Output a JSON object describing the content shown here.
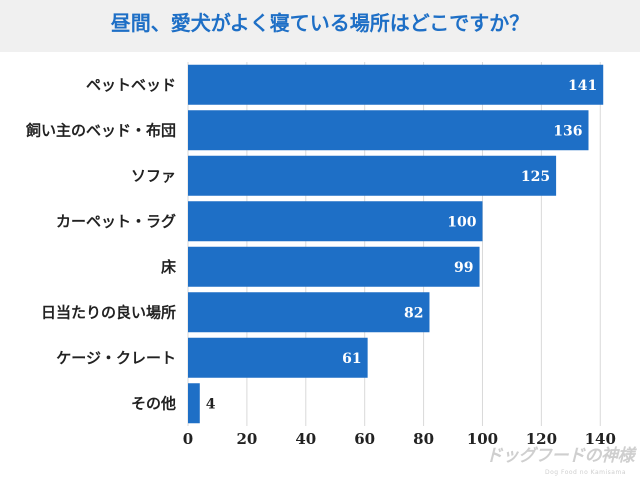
{
  "title": "昼間、愛犬がよく寝ている場所はどこですか？",
  "chart_data": {
    "type": "bar",
    "orientation": "horizontal",
    "categories": [
      "ペットベッド",
      "飼い主のベッド・布団",
      "ソファ",
      "カーペット・ラグ",
      "床",
      "日当たりの良い場所",
      "ケージ・クレート",
      "その他"
    ],
    "values": [
      141,
      136,
      125,
      100,
      99,
      82,
      61,
      4
    ],
    "x_ticks": [
      0,
      20,
      40,
      60,
      80,
      100,
      120,
      140
    ],
    "xlim": [
      0,
      145
    ],
    "grid": "vertical",
    "bar_color": "#1e6fc6"
  },
  "logo": {
    "main": "ドッグフードの神様",
    "sub": "Dog Food no Kamisama"
  }
}
